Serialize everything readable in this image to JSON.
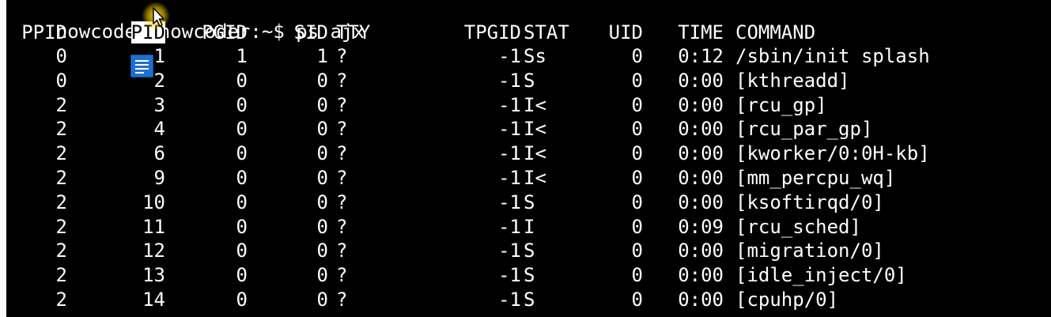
{
  "terminal": {
    "prompt": "nowcoder@nowcoder:~$ ",
    "command": "ps ajx",
    "headers": {
      "ppid": "PPID",
      "pid": "PID",
      "pgid": "PGID",
      "sid": "SID",
      "tty": "TTY",
      "tpgid": "TPGID",
      "stat": "STAT",
      "uid": "UID",
      "time": "TIME",
      "cmd": "COMMAND"
    },
    "rows": [
      {
        "ppid": "0",
        "pid": "1",
        "pgid": "1",
        "sid": "1",
        "tty": "?",
        "tpgid": "-1",
        "stat": "Ss",
        "uid": "0",
        "time": "0:12",
        "cmd": "/sbin/init splash"
      },
      {
        "ppid": "0",
        "pid": "2",
        "pgid": "0",
        "sid": "0",
        "tty": "?",
        "tpgid": "-1",
        "stat": "S",
        "uid": "0",
        "time": "0:00",
        "cmd": "[kthreadd]"
      },
      {
        "ppid": "2",
        "pid": "3",
        "pgid": "0",
        "sid": "0",
        "tty": "?",
        "tpgid": "-1",
        "stat": "I<",
        "uid": "0",
        "time": "0:00",
        "cmd": "[rcu_gp]"
      },
      {
        "ppid": "2",
        "pid": "4",
        "pgid": "0",
        "sid": "0",
        "tty": "?",
        "tpgid": "-1",
        "stat": "I<",
        "uid": "0",
        "time": "0:00",
        "cmd": "[rcu_par_gp]"
      },
      {
        "ppid": "2",
        "pid": "6",
        "pgid": "0",
        "sid": "0",
        "tty": "?",
        "tpgid": "-1",
        "stat": "I<",
        "uid": "0",
        "time": "0:00",
        "cmd": "[kworker/0:0H-kb]"
      },
      {
        "ppid": "2",
        "pid": "9",
        "pgid": "0",
        "sid": "0",
        "tty": "?",
        "tpgid": "-1",
        "stat": "I<",
        "uid": "0",
        "time": "0:00",
        "cmd": "[mm_percpu_wq]"
      },
      {
        "ppid": "2",
        "pid": "10",
        "pgid": "0",
        "sid": "0",
        "tty": "?",
        "tpgid": "-1",
        "stat": "S",
        "uid": "0",
        "time": "0:00",
        "cmd": "[ksoftirqd/0]"
      },
      {
        "ppid": "2",
        "pid": "11",
        "pgid": "0",
        "sid": "0",
        "tty": "?",
        "tpgid": "-1",
        "stat": "I",
        "uid": "0",
        "time": "0:09",
        "cmd": "[rcu_sched]"
      },
      {
        "ppid": "2",
        "pid": "12",
        "pgid": "0",
        "sid": "0",
        "tty": "?",
        "tpgid": "-1",
        "stat": "S",
        "uid": "0",
        "time": "0:00",
        "cmd": "[migration/0]"
      },
      {
        "ppid": "2",
        "pid": "13",
        "pgid": "0",
        "sid": "0",
        "tty": "?",
        "tpgid": "-1",
        "stat": "S",
        "uid": "0",
        "time": "0:00",
        "cmd": "[idle_inject/0]"
      },
      {
        "ppid": "2",
        "pid": "14",
        "pgid": "0",
        "sid": "0",
        "tty": "?",
        "tpgid": "-1",
        "stat": "S",
        "uid": "0",
        "time": "0:00",
        "cmd": "[cpuhp/0]"
      }
    ]
  },
  "overlay": {
    "cursor_icon": "mouse-cursor-highlight-icon",
    "notes_icon": "document-notes-icon"
  },
  "colors": {
    "background": "#000000",
    "text": "#ffffff",
    "selection_bg": "#ffffff",
    "selection_fg": "#000000",
    "cursor_glow": "#ffe600",
    "notes_icon": "#1f6fd1"
  }
}
